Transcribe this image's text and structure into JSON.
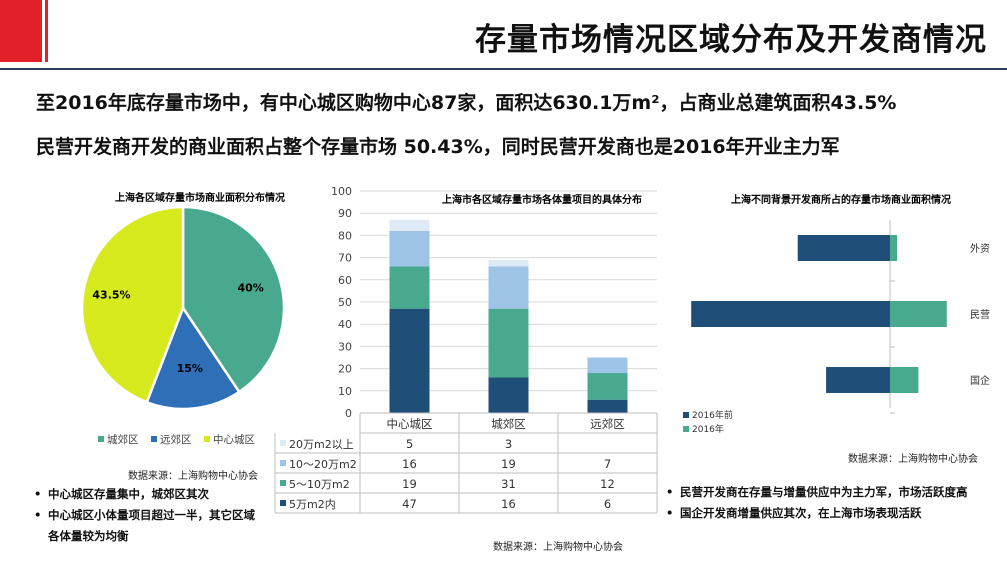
{
  "header": {
    "title": "存量市场情况区域分布及开发商情况",
    "line1": "至2016年底存量市场中，有中心城区购物中心87家，面积达630.1万m²，占商业总建筑面积43.5%",
    "line2": "民营开发商开发的商业面积占整个存量市场 50.43%，同时民营开发商也是2016年开业主力军"
  },
  "colors": {
    "accent_red": "#e1202a",
    "navy": "#1f4e79",
    "teal": "#48a98f",
    "lightblue": "#9dc3e6",
    "paleblue": "#deebf7",
    "lime": "#d7ea1e",
    "midblue": "#2e6fb8"
  },
  "chart_data": [
    {
      "type": "pie",
      "title": "上海各区域存量市场商业面积分布情况",
      "slices": [
        {
          "name": "城郊区",
          "value": 40,
          "label": "40%",
          "color": "#48a98f"
        },
        {
          "name": "远郊区",
          "value": 15,
          "label": "15%",
          "color": "#2e6fb8"
        },
        {
          "name": "中心城区",
          "value": 43.5,
          "label": "43.5%",
          "color": "#d7ea1e"
        }
      ],
      "legend": [
        "城郊区",
        "远郊区",
        "中心城区"
      ],
      "source": "数据来源：上海购物中心协会"
    },
    {
      "type": "bar",
      "stacked": true,
      "title": "上海市各区域存量市场各体量项目的具体分布",
      "categories": [
        "中心城区",
        "城郊区",
        "远郊区"
      ],
      "ylim": [
        0,
        100
      ],
      "yticks": [
        0,
        10,
        20,
        30,
        40,
        50,
        60,
        70,
        80,
        90,
        100
      ],
      "series": [
        {
          "name": "5万m2内",
          "values": [
            47,
            16,
            6
          ],
          "color": "#1f4e79"
        },
        {
          "name": "5～10万m2",
          "values": [
            19,
            31,
            12
          ],
          "color": "#48a98f"
        },
        {
          "name": "10～20万m2",
          "values": [
            16,
            19,
            7
          ],
          "color": "#9dc3e6"
        },
        {
          "name": "20万m2以上",
          "values": [
            5,
            3,
            ""
          ],
          "color": "#deebf7"
        }
      ],
      "table_rows": [
        {
          "name": "20万m2以上",
          "cells": [
            "5",
            "3",
            ""
          ]
        },
        {
          "name": "10～20万m2",
          "cells": [
            "16",
            "19",
            "7"
          ]
        },
        {
          "name": "5～10万m2",
          "cells": [
            "19",
            "31",
            "12"
          ]
        },
        {
          "name": "5万m2内",
          "cells": [
            "47",
            "16",
            "6"
          ]
        }
      ],
      "source": "数据来源：上海购物中心协会"
    },
    {
      "type": "bar",
      "orientation": "horizontal",
      "diverging": true,
      "title": "上海不同背景开发商所占的存量市场商业面积情况",
      "categories": [
        "外资",
        "民营",
        "国企"
      ],
      "series": [
        {
          "name": "2016年前",
          "values": [
            -13,
            -28,
            -9
          ],
          "color": "#1f4e79"
        },
        {
          "name": "2016年",
          "values": [
            1,
            8,
            4
          ],
          "color": "#48a98f"
        }
      ],
      "source": "数据来源：上海购物中心协会"
    }
  ],
  "bullets_left": [
    "中心城区存量集中，城郊区其次",
    "中心城区小体量项目超过一半，其它区域各体量较为均衡"
  ],
  "bullets_right": [
    "民营开发商在存量与增量供应中为主力军，市场活跃度高",
    "国企开发商增量供应其次，在上海市场表现活跃"
  ]
}
